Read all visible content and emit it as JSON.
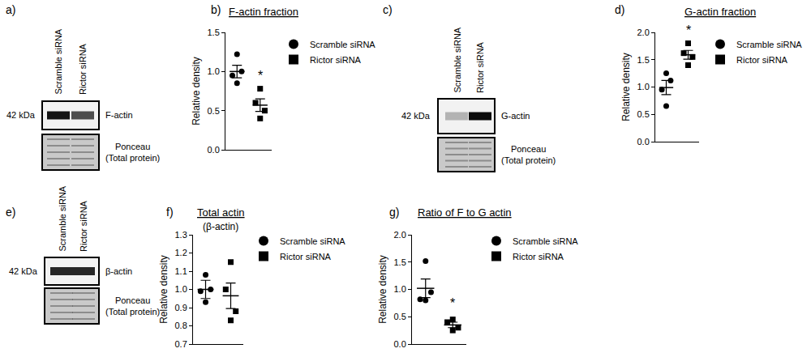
{
  "chart_data": [
    {
      "type": "scatter",
      "label": "b)",
      "title": "F-actin fraction",
      "y_label": "Relative density",
      "xlim": [
        0.5,
        2.5
      ],
      "ylim": [
        0,
        1.5
      ],
      "yticks": [
        {
          "value": 0,
          "label": "0.0"
        },
        {
          "value": 0.5,
          "label": "0.5"
        },
        {
          "value": 1,
          "label": "1.0"
        },
        {
          "value": 1.5,
          "label": "1.5"
        }
      ],
      "tick_labels": "y",
      "grid": false,
      "legend": "upper right",
      "series": [
        {
          "name": "Scramble siRNA",
          "marker": "circle",
          "color": "#000000",
          "x": [
            1.0,
            1.2,
            0.8,
            1.0
          ],
          "values": [
            1.22,
            1.0,
            0.95,
            0.85
          ],
          "mean": 1.0,
          "error": 0.08
        },
        {
          "name": "Rictor siRNA",
          "marker": "square",
          "color": "#000000",
          "x": [
            2.0,
            1.8,
            2.2,
            2.0
          ],
          "values": [
            0.78,
            0.6,
            0.5,
            0.4
          ],
          "mean": 0.57,
          "error": 0.08
        }
      ],
      "annotations": [
        {
          "text": "*",
          "x": 2,
          "y": 0.84
        }
      ]
    },
    {
      "type": "scatter",
      "label": "d)",
      "title": "G-actin fraction",
      "y_label": "Relative density",
      "xlim": [
        0.5,
        2.5
      ],
      "ylim": [
        0,
        2
      ],
      "yticks": [
        {
          "value": 0,
          "label": "0.0"
        },
        {
          "value": 0.5,
          "label": "0.5"
        },
        {
          "value": 1,
          "label": "1.0"
        },
        {
          "value": 1.5,
          "label": "1.5"
        },
        {
          "value": 2,
          "label": "2.0"
        }
      ],
      "tick_labels": "y",
      "grid": false,
      "legend": "upper right",
      "series": [
        {
          "name": "Scramble siRNA",
          "marker": "circle",
          "color": "#000000",
          "x": [
            1.0,
            1.2,
            0.8,
            1.0
          ],
          "values": [
            1.25,
            1.12,
            0.95,
            0.65
          ],
          "mean": 0.99,
          "error": 0.13
        },
        {
          "name": "Rictor siRNA",
          "marker": "square",
          "color": "#000000",
          "x": [
            2.0,
            1.8,
            2.2,
            2.0
          ],
          "values": [
            1.8,
            1.62,
            1.55,
            1.4
          ],
          "mean": 1.59,
          "error": 0.08
        }
      ],
      "annotations": [
        {
          "text": "*",
          "x": 2,
          "y": 1.88
        }
      ]
    },
    {
      "type": "scatter",
      "label": "f)",
      "title": "Total actin",
      "subtitle": "(β-actin)",
      "y_label": "Relative density",
      "xlim": [
        0.5,
        2.5
      ],
      "ylim": [
        0.7,
        1.3
      ],
      "yticks": [
        0.7,
        0.8,
        0.9,
        {
          "value": 1,
          "label": "1.0"
        },
        1.1,
        1.2,
        1.3
      ],
      "tick_labels": "y",
      "grid": false,
      "legend": "upper right",
      "series": [
        {
          "name": "Scramble siRNA",
          "marker": "circle",
          "color": "#000000",
          "x": [
            1.0,
            1.2,
            0.8,
            1.0
          ],
          "values": [
            1.08,
            1.0,
            0.99,
            0.93
          ],
          "mean": 1.0,
          "error": 0.05
        },
        {
          "name": "Rictor siRNA",
          "marker": "square",
          "color": "#000000",
          "x": [
            2.0,
            1.8,
            2.2,
            2.0
          ],
          "values": [
            1.15,
            1.0,
            0.88,
            0.83
          ],
          "mean": 0.965,
          "error": 0.07
        }
      ]
    },
    {
      "type": "scatter",
      "label": "g)",
      "title": "Ratio of F to G actin",
      "y_label": "Relative density",
      "xlim": [
        0.5,
        2.5
      ],
      "ylim": [
        0,
        2
      ],
      "yticks": [
        {
          "value": 0,
          "label": "0.0"
        },
        {
          "value": 0.5,
          "label": "0.5"
        },
        {
          "value": 1,
          "label": "1.0"
        },
        {
          "value": 1.5,
          "label": "1.5"
        },
        {
          "value": 2,
          "label": "2.0"
        }
      ],
      "tick_labels": "y",
      "grid": false,
      "legend": "upper right",
      "series": [
        {
          "name": "Scramble siRNA",
          "marker": "circle",
          "color": "#000000",
          "x": [
            1.0,
            1.2,
            0.8,
            1.0
          ],
          "values": [
            1.52,
            0.95,
            0.82,
            0.8
          ],
          "mean": 1.02,
          "error": 0.17
        },
        {
          "name": "Rictor siRNA",
          "marker": "square",
          "color": "#000000",
          "x": [
            2.0,
            1.8,
            2.2,
            2.0
          ],
          "values": [
            0.45,
            0.4,
            0.3,
            0.25
          ],
          "mean": 0.35,
          "error": 0.05
        }
      ],
      "annotations": [
        {
          "text": "*",
          "x": 2,
          "y": 0.6
        }
      ]
    }
  ],
  "blots": [
    {
      "label": "a)",
      "lanes": [
        "Scramble siRNA",
        "Rictor siRNA"
      ],
      "size": "42 kDa",
      "band": "F-actin",
      "loading": [
        "Ponceau",
        "(Total protein)"
      ]
    },
    {
      "label": "c)",
      "lanes": [
        "Scramble siRNA",
        "Rictor siRNA"
      ],
      "size": "42 kDa",
      "band": "G-actin",
      "loading": [
        "Ponceau",
        "(Total protein)"
      ]
    },
    {
      "label": "e)",
      "lanes": [
        "Scramble siRNA",
        "Rictor siRNA"
      ],
      "size": "42 kDa",
      "band": "β-actin",
      "loading": [
        "Ponceau",
        "(Total protein)"
      ]
    }
  ]
}
